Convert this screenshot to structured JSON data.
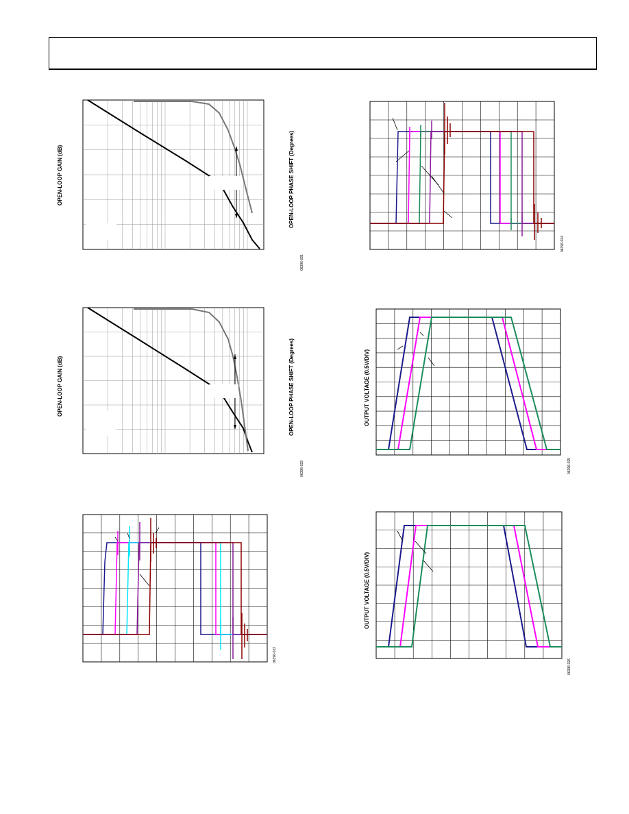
{
  "header": {
    "text": ""
  },
  "figures": [
    {
      "id": "gain1",
      "ylabel": "OPEN-LOOP GAIN (dB)",
      "y2label": "OPEN-LOOP PHASE SHIFT (Degrees)",
      "figno": "06396-021"
    },
    {
      "id": "gain2",
      "ylabel": "OPEN-LOOP GAIN (dB)",
      "y2label": "OPEN-LOOP PHASE SHIFT (Degrees)",
      "figno": "06396-022"
    },
    {
      "id": "pulse1",
      "ylabel": "",
      "figno": "06396-023"
    },
    {
      "id": "pulse2",
      "ylabel": "",
      "figno": "06396-024"
    },
    {
      "id": "ramp1",
      "ylabel": "OUTPUT VOLTAGE (0.5V/DIV)",
      "figno": "06396-025"
    },
    {
      "id": "ramp2",
      "ylabel": "OUTPUT VOLTAGE (0.5V/DIV)",
      "figno": "06396-026"
    }
  ],
  "colors": {
    "navy": "#1a1a8c",
    "magenta": "#ff00ff",
    "green": "#1a8c5a",
    "cyan": "#00e5ff",
    "purple": "#8a1a9a",
    "darkred": "#8c0000",
    "black": "#000000",
    "gray": "#808080"
  },
  "chart_data": [
    {
      "type": "line",
      "title": "",
      "xlabel": "",
      "ylabel": "OPEN-LOOP GAIN (dB)",
      "y2label": "OPEN-LOOP PHASE SHIFT (Degrees)",
      "xscale": "log",
      "grid": true,
      "series": [
        {
          "role": "gain",
          "values": [
            [
              0,
              0.98
            ],
            [
              0.55,
              0.48
            ],
            [
              0.75,
              0.25
            ],
            [
              0.9,
              0.12
            ],
            [
              1,
              0
            ]
          ]
        },
        {
          "role": "phase",
          "values": [
            [
              0,
              0.98
            ],
            [
              0.65,
              0.98
            ],
            [
              0.78,
              0.93
            ],
            [
              0.88,
              0.7
            ],
            [
              0.92,
              0.45
            ],
            [
              1,
              0.2
            ]
          ]
        }
      ]
    },
    {
      "type": "line",
      "title": "",
      "xlabel": "",
      "ylabel": "OPEN-LOOP GAIN (dB)",
      "y2label": "OPEN-LOOP PHASE SHIFT (Degrees)",
      "xscale": "log",
      "grid": true,
      "series": [
        {
          "role": "gain",
          "values": [
            [
              0,
              0.98
            ],
            [
              0.55,
              0.45
            ],
            [
              0.75,
              0.22
            ],
            [
              0.9,
              0.1
            ],
            [
              1,
              0
            ]
          ]
        },
        {
          "role": "phase",
          "values": [
            [
              0,
              0.98
            ],
            [
              0.6,
              0.98
            ],
            [
              0.75,
              0.92
            ],
            [
              0.85,
              0.72
            ],
            [
              0.9,
              0.45
            ],
            [
              1,
              0.05
            ]
          ]
        }
      ]
    },
    {
      "type": "line",
      "title": "",
      "grid": true,
      "note": "pulse response, 4 series",
      "series": [
        {
          "values": [
            [
              0.0,
              0.15
            ],
            [
              0.13,
              0.15
            ],
            [
              0.13,
              0.8
            ],
            [
              0.9,
              0.8
            ],
            [
              0.9,
              0.15
            ],
            [
              1,
              0.15
            ]
          ]
        }
      ]
    },
    {
      "type": "line",
      "title": "",
      "grid": true,
      "note": "pulse response, 4 series",
      "series": [
        {
          "values": [
            [
              0.0,
              0.15
            ],
            [
              0.08,
              0.15
            ],
            [
              0.08,
              0.8
            ],
            [
              0.9,
              0.8
            ],
            [
              0.9,
              0.15
            ],
            [
              1,
              0.15
            ]
          ]
        }
      ]
    },
    {
      "type": "line",
      "title": "",
      "ylabel": "OUTPUT VOLTAGE (0.5V/DIV)",
      "grid": true,
      "note": "3 series trapezoid",
      "series": [
        {
          "values": [
            [
              0.1,
              0.95
            ],
            [
              0.9,
              0.95
            ]
          ]
        }
      ]
    },
    {
      "type": "line",
      "title": "",
      "ylabel": "OUTPUT VOLTAGE (0.5V/DIV)",
      "grid": true,
      "note": "3 series trapezoid",
      "series": [
        {
          "values": [
            [
              0.1,
              0.95
            ],
            [
              0.9,
              0.95
            ]
          ]
        }
      ]
    }
  ]
}
